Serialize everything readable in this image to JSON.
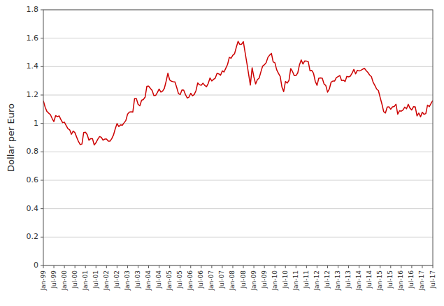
{
  "chart_data": {
    "type": "line",
    "ylabel": "Dollar per Euro",
    "ylim": [
      0,
      1.8
    ],
    "yticks": [
      0,
      0.2,
      0.4,
      0.6,
      0.8,
      1,
      1.2,
      1.4,
      1.6,
      1.8
    ],
    "grid": true,
    "color": "#cc0000",
    "categories": [
      "Jan-99",
      null,
      null,
      null,
      null,
      null,
      "Jul-99",
      null,
      null,
      null,
      null,
      null,
      "Jan-00",
      null,
      null,
      null,
      null,
      null,
      "Jul-00",
      null,
      null,
      null,
      null,
      null,
      "Jan-01",
      null,
      null,
      null,
      null,
      null,
      "Jul-01",
      null,
      null,
      null,
      null,
      null,
      "Jan-02",
      null,
      null,
      null,
      null,
      null,
      "Jul-02",
      null,
      null,
      null,
      null,
      null,
      "Jan-03",
      null,
      null,
      null,
      null,
      null,
      "Jul-03",
      null,
      null,
      null,
      null,
      null,
      "Jan-04",
      null,
      null,
      null,
      null,
      null,
      "Jul-04",
      null,
      null,
      null,
      null,
      null,
      "Jan-05",
      null,
      null,
      null,
      null,
      null,
      "Jul-05",
      null,
      null,
      null,
      null,
      null,
      "Jan-06",
      null,
      null,
      null,
      null,
      null,
      "Jul-06",
      null,
      null,
      null,
      null,
      null,
      "Jan-07",
      null,
      null,
      null,
      null,
      null,
      "Jul-07",
      null,
      null,
      null,
      null,
      null,
      "Jan-08",
      null,
      null,
      null,
      null,
      null,
      "Jul-08",
      null,
      null,
      null,
      null,
      null,
      "Jan-09",
      null,
      null,
      null,
      null,
      null,
      "Jul-09",
      null,
      null,
      null,
      null,
      null,
      "Jan-10",
      null,
      null,
      null,
      null,
      null,
      "Jul-10",
      null,
      null,
      null,
      null,
      null,
      "Jan-11",
      null,
      null,
      null,
      null,
      null,
      "Jul-11",
      null,
      null,
      null,
      null,
      null,
      "Jan-12",
      null,
      null,
      null,
      null,
      null,
      "Jul-12",
      null,
      null,
      null,
      null,
      null,
      "Jan-13",
      null,
      null,
      null,
      null,
      null,
      "Jul-13",
      null,
      null,
      null,
      null,
      null,
      "Jan-14",
      null,
      null,
      null,
      null,
      null,
      "Jul-14",
      null,
      null,
      null,
      null,
      null,
      "Jan-15",
      null,
      null,
      null,
      null,
      null,
      "Jul-15",
      null,
      null,
      null,
      null,
      null,
      "Jan-16",
      null,
      null,
      null,
      null,
      null,
      "Jul-16",
      null,
      null,
      null,
      null,
      null,
      "Jan-17",
      null,
      null,
      null,
      null,
      null,
      "Jul-17"
    ],
    "values": [
      1.16,
      1.115,
      1.085,
      1.073,
      1.062,
      1.035,
      1.013,
      1.055,
      1.048,
      1.053,
      1.027,
      1.005,
      1.009,
      0.985,
      0.963,
      0.955,
      0.924,
      0.946,
      0.935,
      0.903,
      0.873,
      0.851,
      0.855,
      0.936,
      0.938,
      0.921,
      0.882,
      0.893,
      0.893,
      0.848,
      0.864,
      0.888,
      0.907,
      0.903,
      0.882,
      0.89,
      0.89,
      0.875,
      0.875,
      0.893,
      0.919,
      0.963,
      0.999,
      0.978,
      0.99,
      0.987,
      1.004,
      1.02,
      1.065,
      1.079,
      1.082,
      1.08,
      1.175,
      1.175,
      1.135,
      1.124,
      1.163,
      1.168,
      1.185,
      1.261,
      1.263,
      1.247,
      1.232,
      1.196,
      1.197,
      1.218,
      1.242,
      1.22,
      1.228,
      1.248,
      1.298,
      1.354,
      1.306,
      1.297,
      1.294,
      1.292,
      1.254,
      1.211,
      1.203,
      1.236,
      1.234,
      1.203,
      1.179,
      1.185,
      1.212,
      1.195,
      1.203,
      1.231,
      1.285,
      1.272,
      1.269,
      1.283,
      1.268,
      1.258,
      1.282,
      1.32,
      1.299,
      1.31,
      1.319,
      1.352,
      1.349,
      1.339,
      1.37,
      1.362,
      1.389,
      1.415,
      1.465,
      1.459,
      1.48,
      1.491,
      1.537,
      1.578,
      1.556,
      1.558,
      1.576,
      1.499,
      1.425,
      1.347,
      1.27,
      1.392,
      1.328,
      1.278,
      1.308,
      1.319,
      1.363,
      1.404,
      1.413,
      1.428,
      1.465,
      1.481,
      1.493,
      1.433,
      1.427,
      1.378,
      1.353,
      1.331,
      1.256,
      1.224,
      1.295,
      1.284,
      1.302,
      1.386,
      1.366,
      1.337,
      1.337,
      1.355,
      1.413,
      1.447,
      1.418,
      1.44,
      1.439,
      1.435,
      1.37,
      1.373,
      1.353,
      1.296,
      1.268,
      1.318,
      1.321,
      1.318,
      1.278,
      1.267,
      1.22,
      1.242,
      1.29,
      1.298,
      1.298,
      1.322,
      1.33,
      1.337,
      1.302,
      1.305,
      1.295,
      1.331,
      1.328,
      1.333,
      1.354,
      1.38,
      1.349,
      1.374,
      1.369,
      1.374,
      1.381,
      1.388,
      1.372,
      1.359,
      1.34,
      1.329,
      1.289,
      1.267,
      1.242,
      1.231,
      1.182,
      1.136,
      1.083,
      1.073,
      1.115,
      1.117,
      1.1,
      1.116,
      1.119,
      1.135,
      1.065,
      1.089,
      1.086,
      1.095,
      1.115,
      1.103,
      1.135,
      1.107,
      1.095,
      1.118,
      1.116,
      1.053,
      1.073,
      1.046,
      1.079,
      1.064,
      1.069,
      1.129,
      1.118,
      1.141,
      1.161
    ]
  }
}
